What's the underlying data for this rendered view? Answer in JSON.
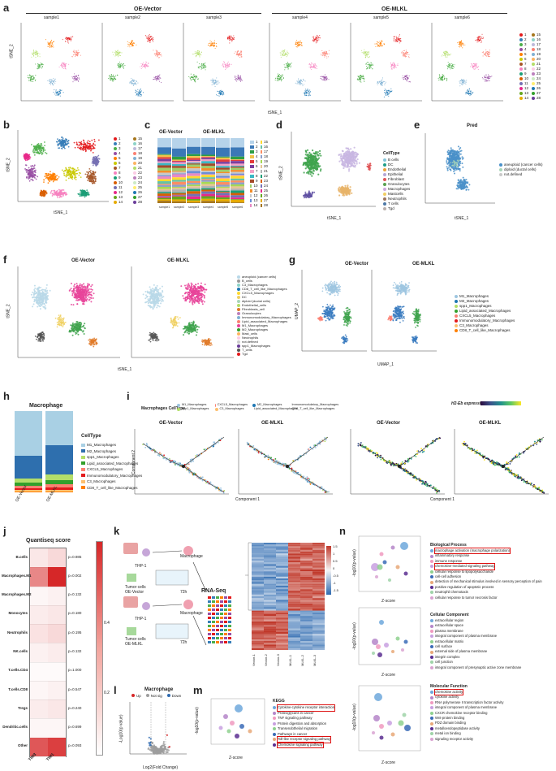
{
  "panels": {
    "a": {
      "letter": "a",
      "group_left": "OE-Vector",
      "group_right": "OE-MLKL",
      "samples": [
        "sample1",
        "sample2",
        "sample3",
        "sample4",
        "sample5",
        "sample6"
      ],
      "ylabel": "tSNE_2",
      "xlabel": "tSNE_1"
    },
    "b": {
      "letter": "b",
      "xlabel": "tSNE_1",
      "ylabel": "tSNE_2",
      "legend": [
        "1",
        "2",
        "3",
        "4",
        "5",
        "6",
        "7",
        "8",
        "9",
        "10",
        "11",
        "12",
        "13",
        "14",
        "15",
        "16",
        "17",
        "18",
        "19",
        "20",
        "21",
        "22",
        "23",
        "24",
        "25",
        "26",
        "27",
        "28"
      ],
      "xticks": [
        "-20",
        "-10",
        "0",
        "10",
        "20",
        "30"
      ]
    },
    "c": {
      "letter": "c",
      "group_left": "OE-Vector",
      "group_right": "OE-MLKL",
      "samples": [
        "sample1",
        "sample2",
        "sample3",
        "sample4",
        "sample5",
        "sample6"
      ],
      "ylabel": "Proportion"
    },
    "d": {
      "letter": "d",
      "xlabel": "tSNE_1",
      "ylabel": "tSNE_2",
      "legend_title": "CellType",
      "legend": [
        "B cells",
        "DC",
        "Endothelial",
        "Epithelial",
        "Fibroblast",
        "Granulocytes",
        "Macrophages",
        "Mastcells",
        "Neutrophils",
        "T cells",
        "Tgd"
      ],
      "xticks": [
        "-20",
        "-10",
        "0",
        "10",
        "20",
        "30"
      ]
    },
    "e": {
      "letter": "e",
      "title": "Pred",
      "xlabel": "tSNE_1",
      "ylabel": "tSNE_2",
      "legend": [
        "aneuploid (cancer cells)",
        "diploid (ductal cells)",
        "not.defined"
      ],
      "xticks": [
        "-30",
        "-20",
        "-10",
        "0",
        "10"
      ]
    },
    "f": {
      "letter": "f",
      "left_title": "OE-Vector",
      "right_title": "OE-MLKL",
      "xlabel": "tSNE_1",
      "ylabel": "tSNE_2",
      "legend": [
        "aneuploid (cancer cells)",
        "B_cells",
        "C3_Macrophages",
        "CD8_T_cell_like_Macrophages",
        "CXCL5_Macrophages",
        "DC",
        "diploid (ductal cells)",
        "Endothelial_cells",
        "Fibroblasts_cell",
        "Granulocytes",
        "Immunomodulatory_Macrophages",
        "Lipid_associated_Macrophages",
        "M1_Macrophages",
        "M2_Macrophages",
        "Mast_cells",
        "Neutrophils",
        "not.defined",
        "spp1_Macrophages",
        "T_cells",
        "Tgd"
      ]
    },
    "g": {
      "letter": "g",
      "left_title": "OE-Vector",
      "right_title": "OE-MLKL",
      "xlabel": "UMAP_1",
      "ylabel": "UMAP_2",
      "legend": [
        "M1_Macrophages",
        "M2_Macrophages",
        "spp1_Macrophages",
        "Lipid_associated_Macrophages",
        "CXCL5_Macrophages",
        "Immunomodulatory_Macrophages",
        "C3_Macrophages",
        "CD8_T_cell_like_Macrophages"
      ]
    },
    "h": {
      "letter": "h",
      "title": "Macrophage",
      "legend_title": "CellType",
      "legend": [
        "M1_Macrophages",
        "M2_Macrophages",
        "spp1_Macrophages",
        "Lipid_associated_Macrophages",
        "CXCL5_Macrophages",
        "Immunomodulatory_Macrophages",
        "C3_Macrophages",
        "CD8_T_cell_like_Macrophages"
      ],
      "xlabels": [
        "OE-Vector",
        "OE-MLKL"
      ],
      "ylabel": "Proportion"
    },
    "i": {
      "letter": "i",
      "legend_title": "Macrophages CellType",
      "legend": [
        "M1_Macrophages",
        "spp1_Macrophages",
        "CXCL5_Macrophages",
        "C3_Macrophages",
        "M2_Macrophages",
        "Lipid_associated_Macrophages",
        "Immunomodulatory_Macrophages",
        "CD8_T_cell_like_Macrophages"
      ],
      "plot_titles": [
        "OE-Vector",
        "OE-MLKL",
        "OE-Vector",
        "OE-MLKL"
      ],
      "expr_label": "H2-Eb expression",
      "xlabel": "Component 1",
      "ylabel": "Component 2"
    },
    "j": {
      "letter": "j",
      "title": "Quantiseq score",
      "rows": [
        "B.cells",
        "Macrophages.M1",
        "Macrophages.M2",
        "Monocytes",
        "Neutrophils",
        "NK.cells",
        "T.cells.CD4",
        "T.cells.CD8",
        "Tregs",
        "Dendritic.cells",
        "Other"
      ],
      "pvalues": [
        "p=0.985",
        "p=0.002",
        "p=0.132",
        "p=0.180",
        "p=0.195",
        "p=0.132",
        "p=1.000",
        "p=0.547",
        "p=0.240",
        "p=0.699",
        "p=0.093"
      ],
      "cols": [
        "TIM3",
        "TIM1"
      ],
      "scale": [
        "0.4",
        "0.2"
      ]
    },
    "k": {
      "letter": "k",
      "rnaseq": "RNA-Seq",
      "thp1": "THP-1",
      "macrophage": "Macrophage",
      "tumor_vector": "Tumor cells OE-Vector",
      "tumor_mlkl": "Tumor cells OE-MLKL",
      "time": "72h",
      "heat_cols": [
        "Vector-1",
        "Vector-2",
        "Vector-3",
        "MLKL-1",
        "MLKL-2",
        "MLKL-3"
      ],
      "heat_scale": [
        "1.5",
        "1",
        "0.5",
        "0",
        "-0.5",
        "-1",
        "-1.5"
      ]
    },
    "l": {
      "letter": "l",
      "title": "Macrophage",
      "legend": [
        "Up",
        "Not sig",
        "Down"
      ],
      "xlabel": "Log2(Fold Change)",
      "ylabel": "-Log10(p value)",
      "xticks": [
        "-5",
        "0",
        "5"
      ]
    },
    "m": {
      "letter": "m",
      "title": "KEGG",
      "xlabel": "Z-score",
      "ylabel": "-log10(p-value)",
      "terms": [
        "Cytokine-cytokine receptor interaction",
        "Proteoglycans in cancer",
        "TNF signaling pathway",
        "Protein digestion and absorption",
        "Transendothelial migration",
        "Pathways in cancer",
        "Toll-like receptor signaling pathway",
        "Chemokine signaling pathway"
      ],
      "xticks": [
        "-1",
        "0",
        "1",
        "2",
        "3"
      ]
    },
    "n": {
      "letter": "n",
      "bp_title": "Biological Process",
      "bp_terms": [
        "macrophage activation (macrophage polarization)",
        "inflammatory response",
        "immune response",
        "chemokine-mediated signaling pathway",
        "cellular response to lipopolysaccharide",
        "cell-cell adhesion",
        "detection of mechanical stimulus involved in sensory perception of pain",
        "positive regulation of apoptotic process",
        "neutrophil chemotaxis",
        "cellular response to tumor necrosis factor"
      ],
      "cc_title": "Cellular Component",
      "cc_terms": [
        "extracellular region",
        "extracellular space",
        "plasma membrane",
        "integral component of plasma membrane",
        "extracellular matrix",
        "cell surface",
        "external side of plasma membrane",
        "integrin complex",
        "cell junction",
        "integral component of presynaptic active zone membrane"
      ],
      "mf_title": "Molecular Function",
      "mf_terms": [
        "chemokine activity",
        "cytokine activity",
        "RNA polymerase II transcription factor activity",
        "integral component of plasma membrane",
        "CXCR chemokine receptor binding",
        "Wnt-protein binding",
        "PDZ domain binding",
        "metalloendopeptidase activity",
        "metal ion binding",
        "signaling receptor activity"
      ],
      "xlabel": "Z-score",
      "ylabel": "-log10(p-value)"
    }
  }
}
